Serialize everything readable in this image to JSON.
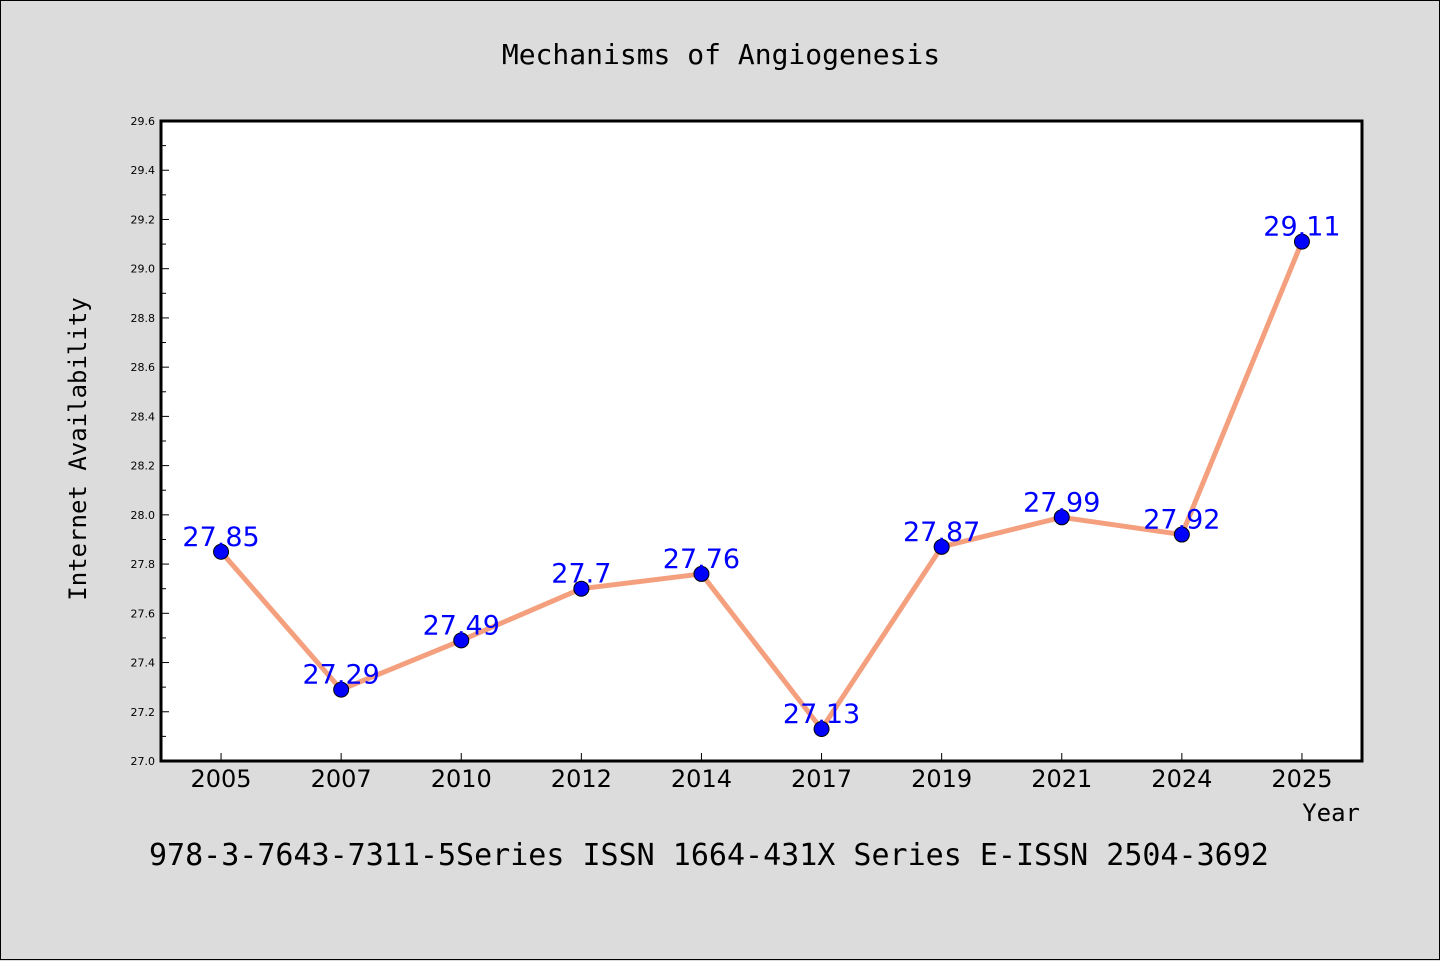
{
  "chart_data": {
    "type": "line",
    "title": "Mechanisms of Angiogenesis",
    "xlabel": "Year",
    "ylabel": "Internet Availability",
    "categories": [
      "2005",
      "2007",
      "2010",
      "2012",
      "2014",
      "2017",
      "2019",
      "2021",
      "2024",
      "2025"
    ],
    "values": [
      27.85,
      27.29,
      27.49,
      27.7,
      27.76,
      27.13,
      27.87,
      27.99,
      27.92,
      29.11
    ],
    "data_labels": [
      "27.85",
      "27.29",
      "27.49",
      "27.7",
      "27.76",
      "27.13",
      "27.87",
      "27.99",
      "27.92",
      "29.11"
    ],
    "ylim": [
      27.0,
      29.6
    ],
    "yticks": [
      "27.0",
      "27.2",
      "27.4",
      "27.6",
      "27.8",
      "28.0",
      "28.2",
      "28.4",
      "28.6",
      "28.8",
      "29.0",
      "29.2",
      "29.4",
      "29.6"
    ],
    "grid": false,
    "legend": "none",
    "colors": {
      "line": "#f4a07e",
      "marker": "#0000ff",
      "data_label": "#0000ff",
      "background": "#dcdcdc",
      "plot_background": "#ffffff"
    }
  },
  "footer": "978-3-7643-7311-5Series ISSN 1664-431X Series E-ISSN 2504-3692"
}
